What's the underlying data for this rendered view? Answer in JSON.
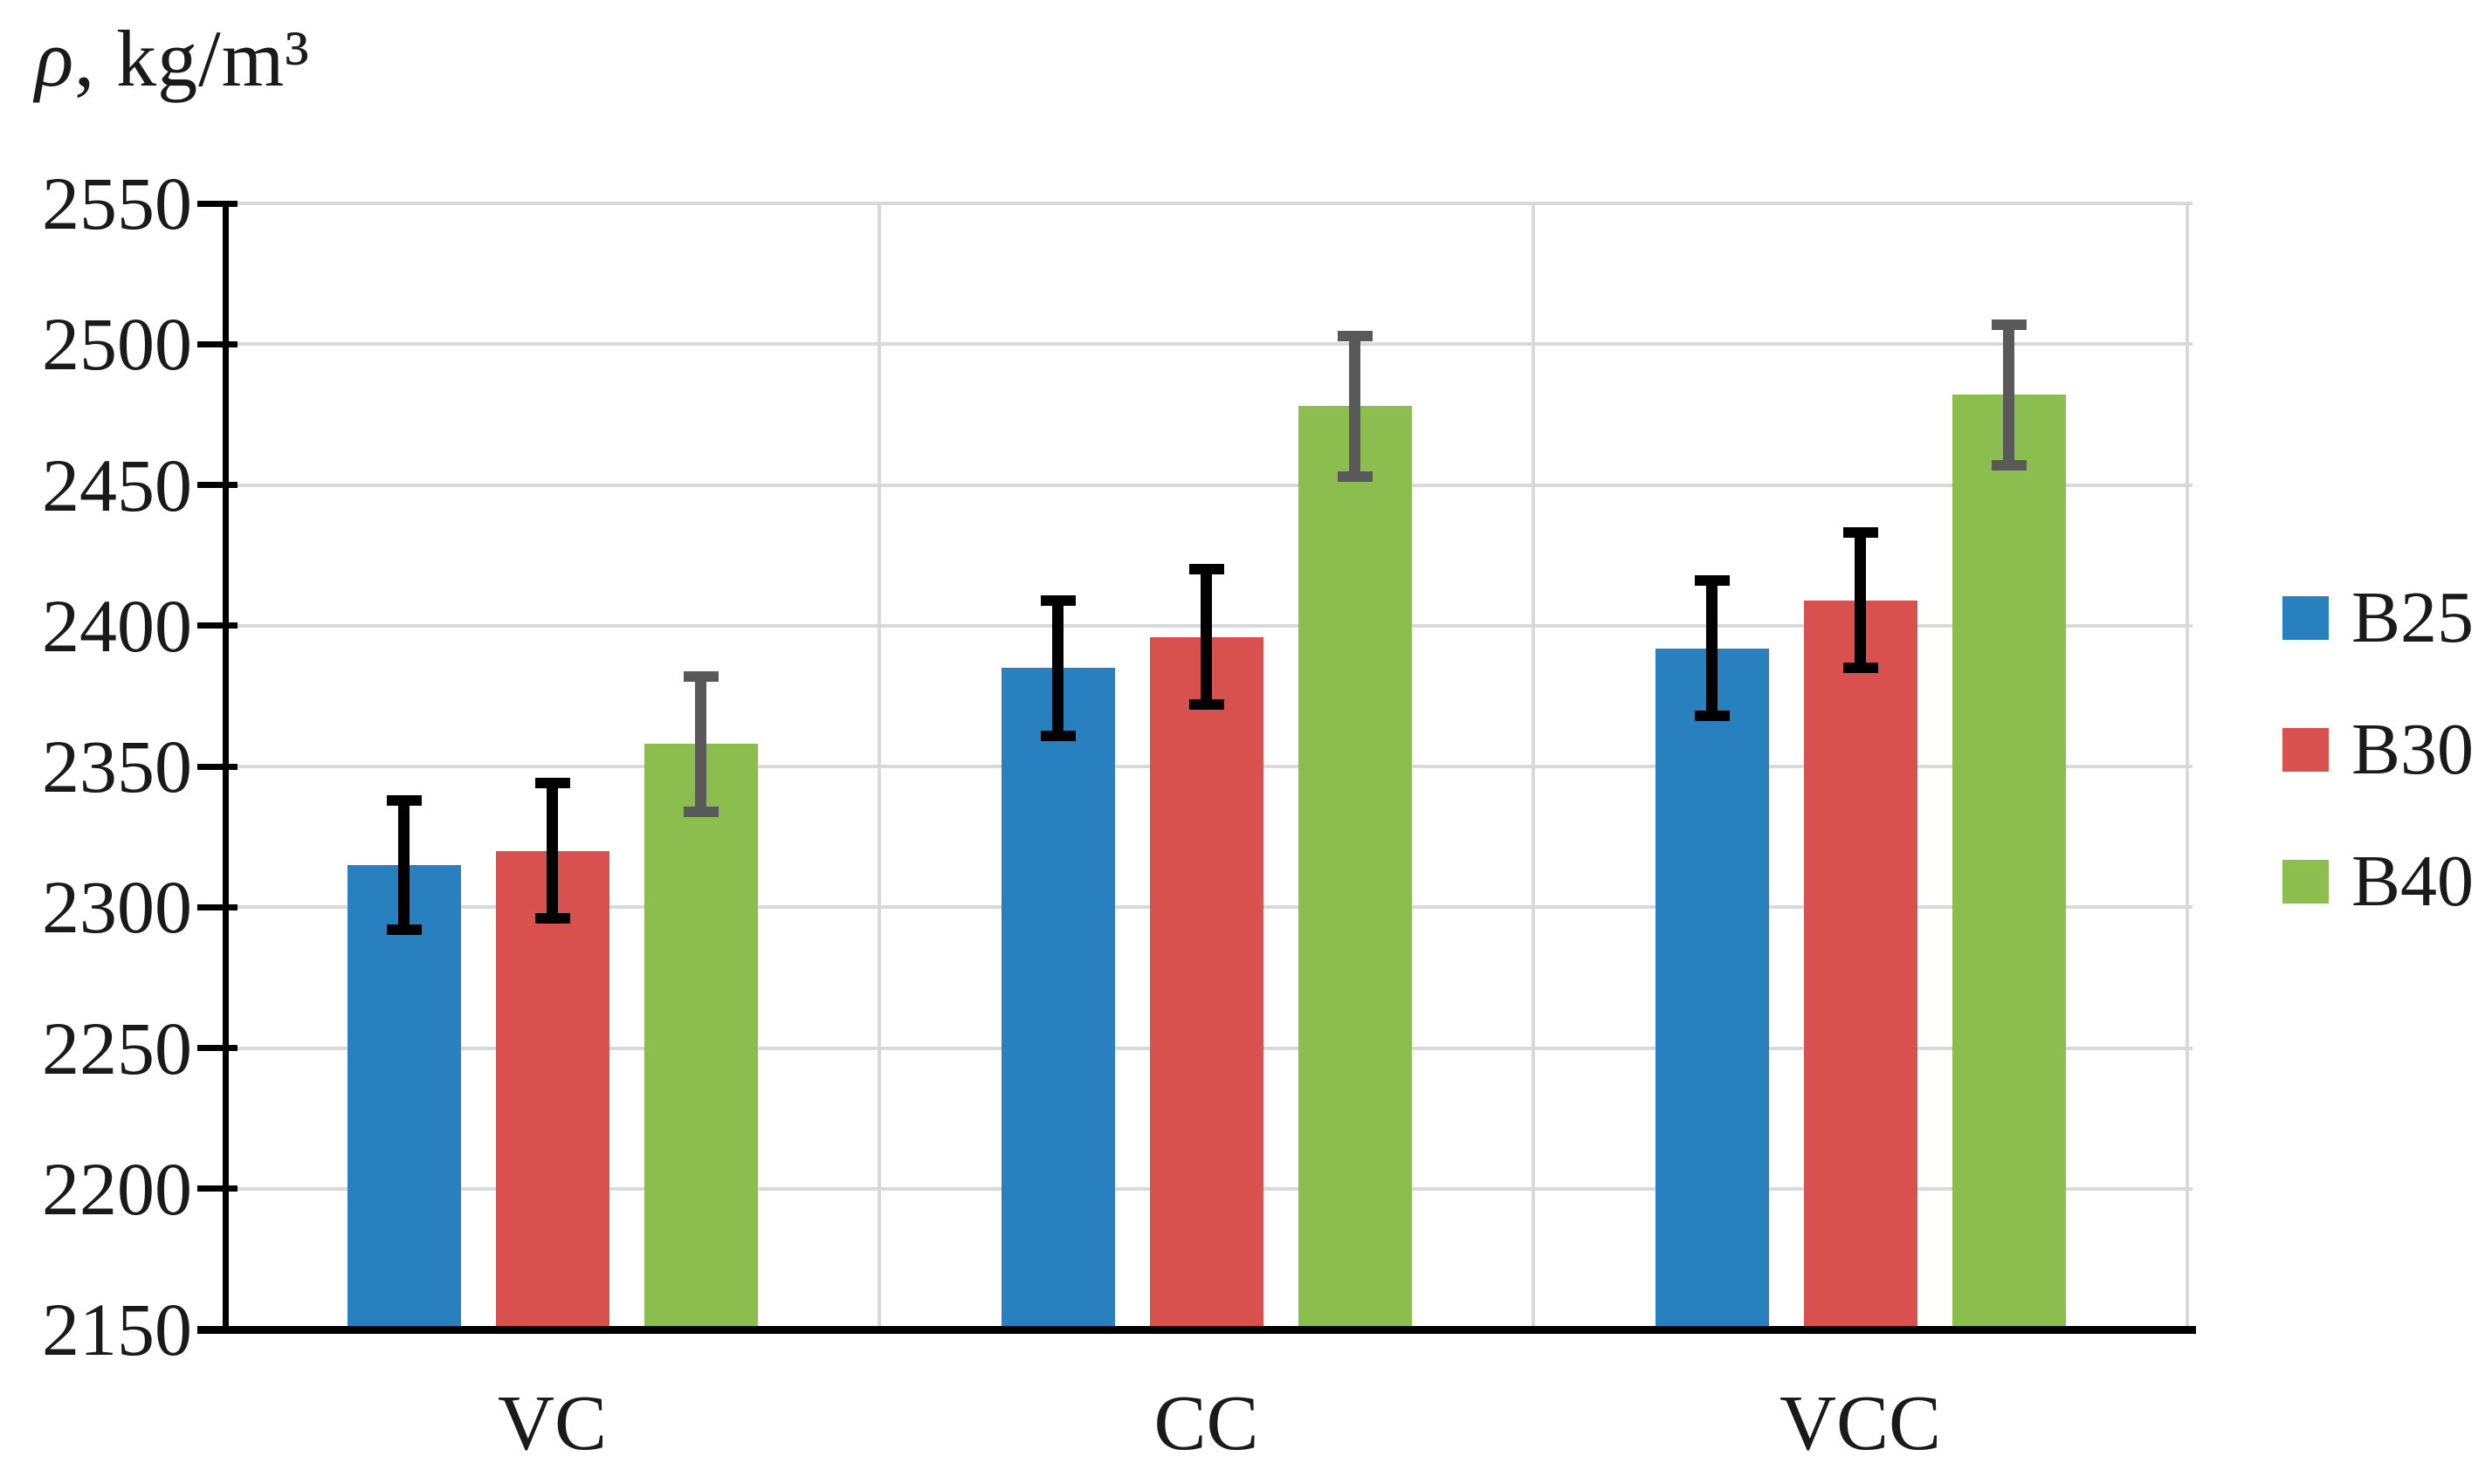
{
  "chart_data": {
    "type": "bar",
    "title": "",
    "ylabel": "ρ, kg/m³",
    "ylabel_prefix": "ρ",
    "ylabel_suffix": ", kg/m³",
    "xlabel": "",
    "categories": [
      "VC",
      "CC",
      "VCC"
    ],
    "series": [
      {
        "name": "B25",
        "color": "#2980BE",
        "error_color": "#000000",
        "values": [
          2315,
          2385,
          2392
        ],
        "errors": [
          23,
          24,
          24
        ]
      },
      {
        "name": "B30",
        "color": "#D9514E",
        "error_color": "#000000",
        "values": [
          2320,
          2396,
          2409
        ],
        "errors": [
          24,
          24,
          24
        ]
      },
      {
        "name": "B40",
        "color": "#8CBD4F",
        "error_color": "#595959",
        "values": [
          2358,
          2478,
          2482
        ],
        "errors": [
          24,
          25,
          25
        ]
      }
    ],
    "ylim": [
      2150,
      2550
    ],
    "ytick_step": 50,
    "yticks": [
      2150,
      2200,
      2250,
      2300,
      2350,
      2400,
      2450,
      2500,
      2550
    ],
    "ytick_labels": [
      "2150",
      "2200",
      "2250",
      "2300",
      "2350",
      "2400",
      "2450",
      "2500",
      "2550"
    ],
    "grid": true,
    "gridline_color": "#d9d9d9",
    "axis_color": "#000000",
    "legend_position": "right",
    "error_bars": true
  }
}
